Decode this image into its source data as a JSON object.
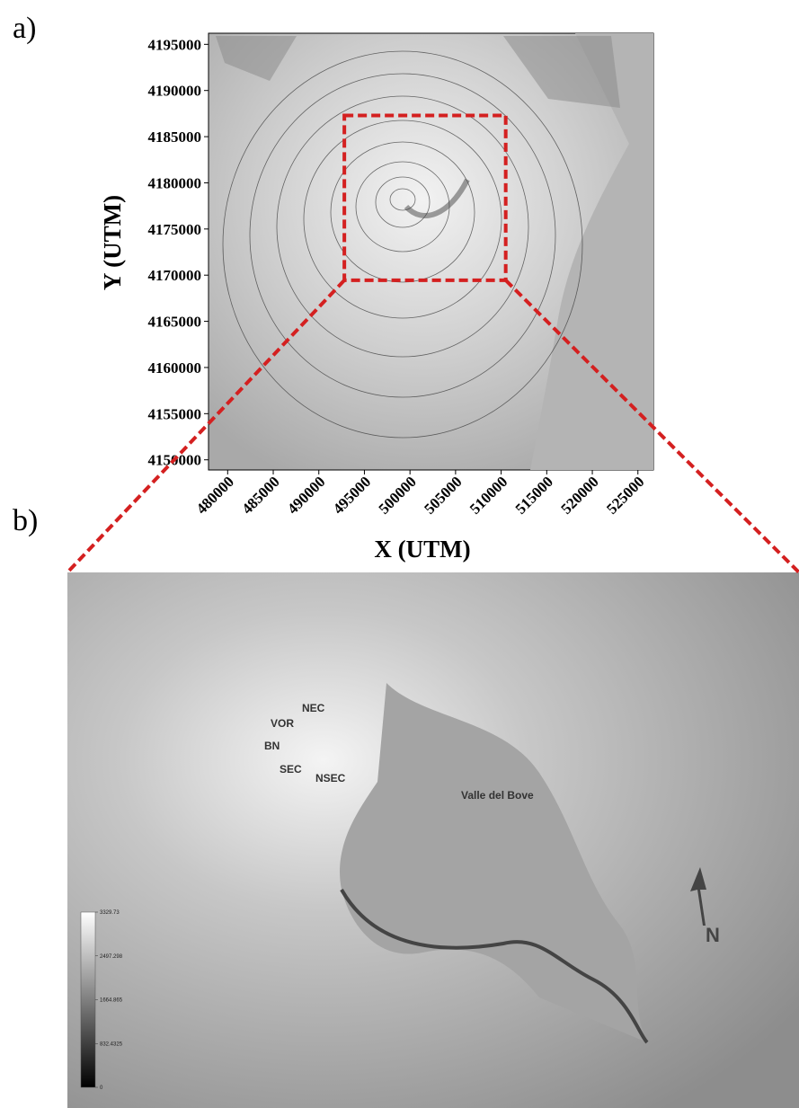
{
  "panel_a": {
    "label": "a)",
    "xlabel": "X (UTM)",
    "ylabel": "Y (UTM)",
    "xlim": [
      477900,
      526700
    ],
    "ylim": [
      4148900,
      4196200
    ],
    "xticks": [
      480000,
      485000,
      490000,
      495000,
      500000,
      505000,
      510000,
      515000,
      520000,
      525000
    ],
    "yticks": [
      4150000,
      4155000,
      4160000,
      4165000,
      4170000,
      4175000,
      4180000,
      4185000,
      4190000,
      4195000
    ],
    "zoom_box": {
      "x": [
        492800,
        510500
      ],
      "y": [
        4169450,
        4187300
      ]
    }
  },
  "panel_b": {
    "label": "b)",
    "annotations": [
      "NEC",
      "VOR",
      "BN",
      "SEC",
      "NSEC",
      "Valle del Bove"
    ],
    "north": "N",
    "colorbar": {
      "lim": [
        0,
        3329.73
      ],
      "ticks": [
        3329.73,
        2497.298,
        1664.865,
        832.4325,
        0
      ]
    }
  }
}
